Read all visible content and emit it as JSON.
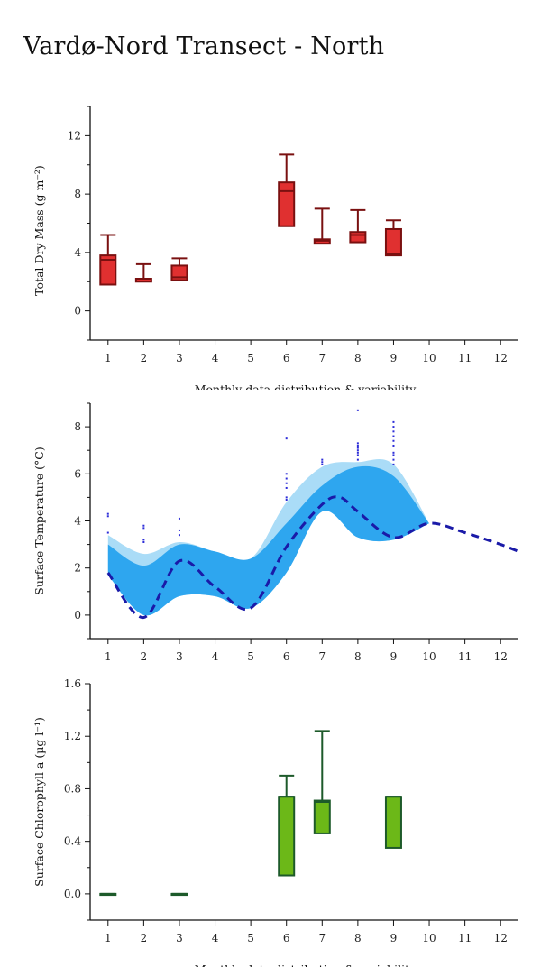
{
  "title": "Vardø-Nord Transect - North",
  "chart_data": [
    {
      "type": "box",
      "ylabel": "Total Dry Mass (g m⁻²)",
      "xlabel": "Monthly data distribution & variability",
      "categories": [
        "1",
        "2",
        "3",
        "4",
        "5",
        "6",
        "7",
        "8",
        "9",
        "10",
        "11",
        "12"
      ],
      "yticks": [
        0,
        4,
        8,
        12
      ],
      "ylim": [
        -2,
        14
      ],
      "color": "#e03030",
      "stroke": "#7a1010",
      "boxes": [
        {
          "month": 1,
          "q1": 1.8,
          "median": 3.5,
          "q3": 3.8,
          "whisker_high": 5.2
        },
        {
          "month": 2,
          "q1": 2.0,
          "median": 2.2,
          "q3": 2.2,
          "whisker_high": 3.2
        },
        {
          "month": 3,
          "q1": 2.1,
          "median": 2.3,
          "q3": 3.1,
          "whisker_high": 3.6
        },
        {
          "month": 6,
          "q1": 5.8,
          "median": 8.2,
          "q3": 8.8,
          "whisker_high": 10.7
        },
        {
          "month": 7,
          "q1": 4.6,
          "median": 4.8,
          "q3": 4.9,
          "whisker_high": 7.0
        },
        {
          "month": 8,
          "q1": 4.7,
          "median": 5.2,
          "q3": 5.4,
          "whisker_high": 6.9
        },
        {
          "month": 9,
          "q1": 3.8,
          "median": 3.9,
          "q3": 5.6,
          "whisker_high": 6.2
        }
      ]
    },
    {
      "type": "area",
      "ylabel": "Surface Temperature (°C)",
      "categories": [
        "1",
        "2",
        "3",
        "4",
        "5",
        "6",
        "7",
        "8",
        "9",
        "10",
        "11",
        "12"
      ],
      "yticks": [
        0,
        2,
        4,
        6,
        8
      ],
      "ylim": [
        -1,
        9
      ],
      "xlim": [
        0.5,
        12.5
      ],
      "color_outer": "#aadcf7",
      "color_inner": "#2ea6ef",
      "color_line": "#1a1aa8",
      "color_points": "#2d2dd8",
      "outer_upper": [
        [
          1,
          3.4
        ],
        [
          2,
          2.6
        ],
        [
          3,
          3.1
        ],
        [
          4,
          2.7
        ],
        [
          5,
          2.4
        ],
        [
          6,
          4.8
        ],
        [
          7,
          6.3
        ],
        [
          8,
          6.5
        ],
        [
          9,
          6.4
        ],
        [
          10,
          3.9
        ]
      ],
      "inner_upper": [
        [
          1,
          3.0
        ],
        [
          2,
          2.1
        ],
        [
          3,
          3.0
        ],
        [
          4,
          2.7
        ],
        [
          5,
          2.4
        ],
        [
          6,
          3.9
        ],
        [
          7,
          5.5
        ],
        [
          8,
          6.3
        ],
        [
          9,
          5.9
        ],
        [
          10,
          3.9
        ]
      ],
      "band_lower": [
        [
          1,
          1.7
        ],
        [
          2,
          0.0
        ],
        [
          3,
          0.8
        ],
        [
          4,
          0.8
        ],
        [
          5,
          0.3
        ],
        [
          6,
          1.8
        ],
        [
          7,
          4.4
        ],
        [
          8,
          3.3
        ],
        [
          9,
          3.2
        ],
        [
          10,
          3.9
        ]
      ],
      "mean_line": [
        [
          1,
          1.8
        ],
        [
          2,
          -0.1
        ],
        [
          3,
          2.3
        ],
        [
          4,
          1.2
        ],
        [
          5,
          0.3
        ],
        [
          6,
          2.9
        ],
        [
          7,
          4.7
        ],
        [
          7.5,
          5.0
        ],
        [
          8,
          4.4
        ],
        [
          9,
          3.3
        ],
        [
          10,
          3.9
        ],
        [
          11,
          3.5
        ],
        [
          12,
          3.0
        ],
        [
          12.5,
          2.7
        ]
      ],
      "points": [
        [
          1,
          4.3
        ],
        [
          1,
          4.2
        ],
        [
          1,
          3.5
        ],
        [
          2,
          3.8
        ],
        [
          2,
          3.7
        ],
        [
          2,
          3.2
        ],
        [
          2,
          3.1
        ],
        [
          3,
          4.1
        ],
        [
          3,
          3.6
        ],
        [
          3,
          3.4
        ],
        [
          6,
          7.5
        ],
        [
          6,
          6.0
        ],
        [
          6,
          5.8
        ],
        [
          6,
          5.6
        ],
        [
          6,
          5.4
        ],
        [
          6,
          5.0
        ],
        [
          6,
          4.9
        ],
        [
          7,
          6.6
        ],
        [
          7,
          6.5
        ],
        [
          7,
          6.4
        ],
        [
          8,
          8.7
        ],
        [
          8,
          7.3
        ],
        [
          8,
          7.2
        ],
        [
          8,
          7.1
        ],
        [
          8,
          7.0
        ],
        [
          8,
          6.9
        ],
        [
          8,
          6.8
        ],
        [
          8,
          6.6
        ],
        [
          9,
          8.2
        ],
        [
          9,
          8.0
        ],
        [
          9,
          7.8
        ],
        [
          9,
          7.6
        ],
        [
          9,
          7.4
        ],
        [
          9,
          7.2
        ],
        [
          9,
          6.9
        ],
        [
          9,
          6.8
        ],
        [
          9,
          6.6
        ],
        [
          9,
          6.4
        ]
      ]
    },
    {
      "type": "box",
      "ylabel": "Surface Chlorophyll a (µg l⁻¹)",
      "xlabel": "Monthly data distribution & variability",
      "categories": [
        "1",
        "2",
        "3",
        "4",
        "5",
        "6",
        "7",
        "8",
        "9",
        "10",
        "11",
        "12"
      ],
      "yticks": [
        0.0,
        0.4,
        0.8,
        1.2,
        1.6
      ],
      "ylim": [
        -0.2,
        1.6
      ],
      "color": "#6cb818",
      "stroke": "#1d5a2a",
      "boxes": [
        {
          "month": 1,
          "q1": 0.0,
          "median": 0.0,
          "q3": 0.0,
          "whisker_high": 0.0
        },
        {
          "month": 3,
          "q1": 0.0,
          "median": 0.0,
          "q3": 0.0,
          "whisker_high": 0.0
        },
        {
          "month": 6,
          "q1": 0.14,
          "median": 0.74,
          "q3": 0.74,
          "whisker_high": 0.9
        },
        {
          "month": 7,
          "q1": 0.46,
          "median": 0.7,
          "q3": 0.71,
          "whisker_high": 1.24
        },
        {
          "month": 9,
          "q1": 0.35,
          "median": 0.74,
          "q3": 0.74,
          "whisker_high": 0.74
        }
      ]
    }
  ]
}
